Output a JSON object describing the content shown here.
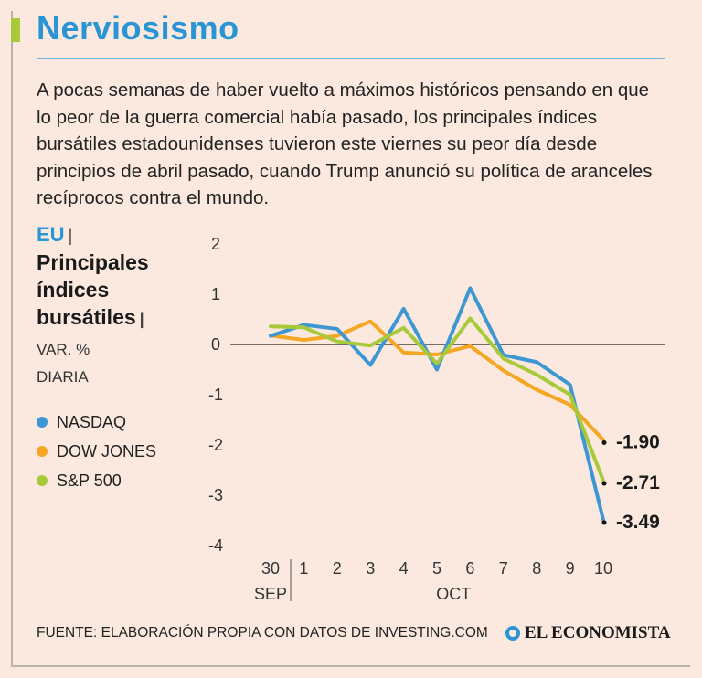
{
  "title": "Nerviosismo",
  "intro": "A pocas semanas de haber vuelto a máximos históricos pensando en que lo peor de la guerra comercial había pasado, los principales índices bursátiles estadounidenses tuvieron este viernes su peor día desde principios de abril pasado, cuando Trump anunció su política de aranceles recíprocos contra el mundo.",
  "side": {
    "country": "EU",
    "separator": "|",
    "heading_lines": [
      "Principales",
      "índices",
      "bursátiles"
    ],
    "unit_lines": [
      "VAR. %",
      "DIARIA"
    ]
  },
  "footer": {
    "source": "FUENTE: ELABORACIÓN PROPIA CON DATOS DE INVESTING.COM",
    "brand": "EL ECONOMISTA"
  },
  "colors": {
    "accent": "#2a95d4",
    "nasdaq": "#3d97d3",
    "dow": "#f5a623",
    "sp500": "#a8c93a"
  },
  "chart_data": {
    "type": "line",
    "title": "Principales índices bursátiles",
    "ylabel": "VAR. % DIARIA",
    "ylim": [
      -4,
      2
    ],
    "yticks": [
      "2",
      "1",
      "0",
      "-1",
      "-2",
      "-3",
      "-4"
    ],
    "ytick_values": [
      2,
      1,
      0,
      -1,
      -2,
      -3,
      -4
    ],
    "categories": [
      "30",
      "1",
      "2",
      "3",
      "4",
      "5",
      "6",
      "7",
      "8",
      "9",
      "10"
    ],
    "month_labels": [
      "SEP",
      "OCT"
    ],
    "series": [
      {
        "name": "NASDAQ",
        "color_key": "nasdaq",
        "values": [
          0.17,
          0.39,
          0.31,
          -0.41,
          0.71,
          -0.5,
          1.12,
          -0.21,
          -0.35,
          -0.8,
          -3.49
        ],
        "end_label": "-3.49"
      },
      {
        "name": "DOW JONES",
        "color_key": "dow",
        "values": [
          0.18,
          0.09,
          0.17,
          0.46,
          -0.16,
          -0.2,
          -0.03,
          -0.52,
          -0.9,
          -1.2,
          -1.9
        ],
        "end_label": "-1.90"
      },
      {
        "name": "S&P 500",
        "color_key": "sp500",
        "values": [
          0.36,
          0.34,
          0.06,
          -0.02,
          0.33,
          -0.38,
          0.52,
          -0.28,
          -0.6,
          -1.0,
          -2.71
        ],
        "end_label": "-2.71"
      }
    ]
  }
}
